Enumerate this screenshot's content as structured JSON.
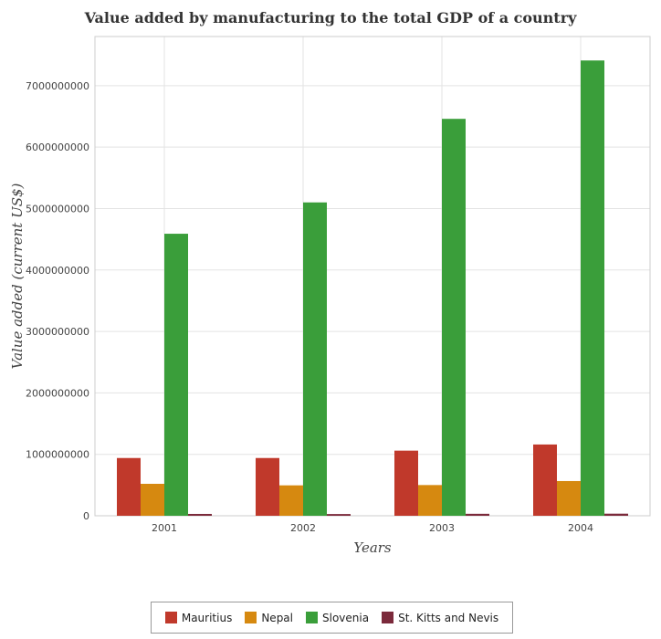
{
  "chart_data": {
    "type": "bar",
    "title": "Value added by manufacturing to the total GDP of a country",
    "xlabel": "Years",
    "ylabel": "Value added (current US$)",
    "categories": [
      "2001",
      "2002",
      "2003",
      "2004"
    ],
    "ylim": [
      0,
      7800000000
    ],
    "yticks": [
      0,
      1000000000,
      2000000000,
      3000000000,
      4000000000,
      5000000000,
      6000000000,
      7000000000
    ],
    "ytick_labels": [
      "0",
      "1000000000",
      "2000000000",
      "3000000000",
      "4000000000",
      "5000000000",
      "6000000000",
      "7000000000"
    ],
    "grid": true,
    "legend_position": "bottom",
    "series": [
      {
        "name": "Mauritius",
        "color": "#c0392b",
        "values": [
          940000000,
          940000000,
          1060000000,
          1160000000
        ]
      },
      {
        "name": "Nepal",
        "color": "#d68910",
        "values": [
          520000000,
          495000000,
          500000000,
          565000000
        ]
      },
      {
        "name": "Slovenia",
        "color": "#3a9e3a",
        "values": [
          4590000000,
          5100000000,
          6460000000,
          7410000000
        ]
      },
      {
        "name": "St. Kitts and Nevis",
        "color": "#7b2a3b",
        "values": [
          30000000,
          28000000,
          32000000,
          34000000
        ]
      }
    ]
  }
}
